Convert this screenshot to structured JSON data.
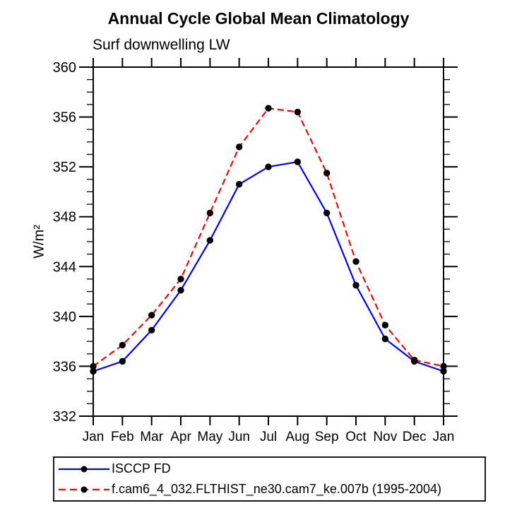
{
  "title": "Annual Cycle Global Mean Climatology",
  "subtitle": "Surf downwelling LW",
  "y_axis_title": "W/m²",
  "chart_data": {
    "type": "line",
    "title": "Annual Cycle Global Mean Climatology",
    "subtitle": "Surf downwelling LW",
    "ylabel": "W/m²",
    "categories": [
      "Jan",
      "Feb",
      "Mar",
      "Apr",
      "May",
      "Jun",
      "Jul",
      "Aug",
      "Sep",
      "Oct",
      "Nov",
      "Dec",
      "Jan"
    ],
    "ylim": [
      332,
      360
    ],
    "y_major_step": 4,
    "y_minor_step": 1,
    "y_tick_labels": [
      "332",
      "336",
      "340",
      "344",
      "348",
      "352",
      "356",
      "360"
    ],
    "grid": false,
    "legend_position": "bottom-left",
    "axis_color": "#000000",
    "series": [
      {
        "name": "ISCCP FD",
        "color": "#0000ff",
        "line_style": "solid",
        "marker": "filled-circle",
        "marker_color": "#000000",
        "values": [
          335.6,
          336.4,
          338.9,
          342.1,
          346.1,
          350.6,
          352.0,
          352.4,
          348.3,
          342.5,
          338.2,
          336.4,
          335.6
        ]
      },
      {
        "name": "f.cam6_4_032.FLTHIST_ne30.cam7_ke.007b (1995-2004)",
        "color": "#ff0000",
        "line_style": "dashed",
        "marker": "filled-circle",
        "marker_color": "#000000",
        "values": [
          336.0,
          337.7,
          340.1,
          343.0,
          348.3,
          353.6,
          356.7,
          356.4,
          351.5,
          344.4,
          339.3,
          336.5,
          336.0
        ]
      }
    ]
  }
}
